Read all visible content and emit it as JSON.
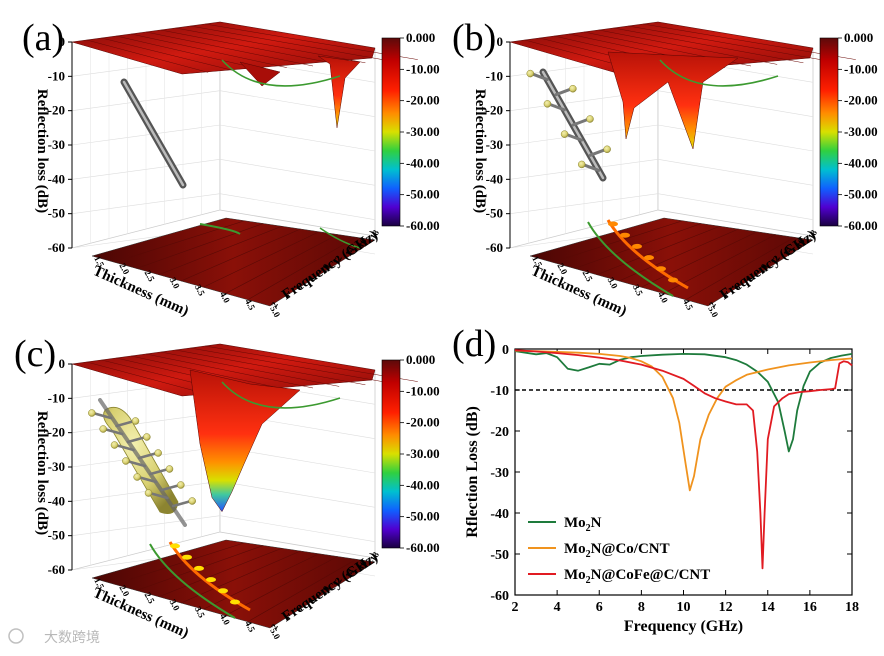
{
  "figure": {
    "panel_labels": [
      "(a)",
      "(b)",
      "(c)",
      "(d)"
    ],
    "watermark": "大数跨境"
  },
  "chart_data": [
    {
      "type": "surface3d",
      "panel": "(a)",
      "zlabel": "Reflection loss (dB)",
      "xlabel": "Thickness (mm)",
      "ylabel": "Frequency (GHz)",
      "z_ticks": [
        "0",
        "-10",
        "-20",
        "-30",
        "-40",
        "-50",
        "-60"
      ],
      "thickness_ticks": [
        "1.5",
        "2.0",
        "2.5",
        "3.0",
        "3.5",
        "4.0",
        "4.5",
        "5.0"
      ],
      "frequency_ticks": [
        "2",
        "4",
        "6",
        "8",
        "10",
        "12",
        "14",
        "16",
        "18"
      ],
      "colorbar": [
        "0.000",
        "-10.00",
        "-20.00",
        "-30.00",
        "-40.00",
        "-50.00",
        "-60.00"
      ],
      "min_rl": -25
    },
    {
      "type": "surface3d",
      "panel": "(b)",
      "zlabel": "Reflection loss (dB)",
      "xlabel": "Thickness (mm)",
      "ylabel": "Frequency (GHz)",
      "z_ticks": [
        "0",
        "-10",
        "-20",
        "-30",
        "-40",
        "-50",
        "-60"
      ],
      "thickness_ticks": [
        "1.5",
        "2.0",
        "2.5",
        "3.0",
        "3.5",
        "4.0",
        "4.5",
        "5.0"
      ],
      "frequency_ticks": [
        "2",
        "4",
        "6",
        "8",
        "10",
        "12",
        "14",
        "16",
        "18"
      ],
      "colorbar": [
        "0.000",
        "-10.00",
        "-20.00",
        "-30.00",
        "-40.00",
        "-50.00",
        "-60.00"
      ],
      "min_rl": -30
    },
    {
      "type": "surface3d",
      "panel": "(c)",
      "zlabel": "Reflection loss (dB)",
      "xlabel": "Thickness (mm)",
      "ylabel": "Frequency (GHz)",
      "z_ticks": [
        "0",
        "-10",
        "-20",
        "-30",
        "-40",
        "-50",
        "-60"
      ],
      "thickness_ticks": [
        "1.5",
        "2.0",
        "2.5",
        "3.0",
        "3.5",
        "4.0",
        "4.5",
        "5.0"
      ],
      "frequency_ticks": [
        "2",
        "4",
        "6",
        "8",
        "10",
        "12",
        "14",
        "16",
        "18"
      ],
      "colorbar": [
        "0.000",
        "-10.00",
        "-20.00",
        "-30.00",
        "-40.00",
        "-50.00",
        "-60.00"
      ],
      "min_rl": -43
    },
    {
      "type": "line",
      "panel": "(d)",
      "xlabel": "Frequency (GHz)",
      "ylabel": "Rflection Loss (dB)",
      "xlim": [
        2,
        18
      ],
      "ylim": [
        -60,
        0
      ],
      "x_ticks": [
        2,
        4,
        6,
        8,
        10,
        12,
        14,
        16,
        18
      ],
      "y_ticks": [
        0,
        -10,
        -20,
        -30,
        -40,
        -50,
        -60
      ],
      "reference_line": -10,
      "series": [
        {
          "name": "Mo2N",
          "label_main": "Mo",
          "label_sub": "2",
          "label_rest": "N",
          "color": "#1e7b3c",
          "x": [
            2,
            2.5,
            3,
            3.5,
            4,
            4.5,
            5,
            5.5,
            6,
            6.5,
            7,
            7.5,
            8,
            9,
            10,
            11,
            12,
            12.5,
            13,
            13.5,
            14,
            14.5,
            14.8,
            15.0,
            15.2,
            15.4,
            15.7,
            16,
            16.5,
            17,
            17.5,
            18
          ],
          "y": [
            -0.5,
            -0.9,
            -1.3,
            -1.0,
            -2.0,
            -4.8,
            -5.3,
            -4.5,
            -3.6,
            -3.8,
            -2.6,
            -2.0,
            -1.7,
            -1.4,
            -1.2,
            -1.3,
            -2.0,
            -2.7,
            -3.8,
            -5.5,
            -8.0,
            -13.0,
            -20.0,
            -25.0,
            -22.0,
            -15.0,
            -9.0,
            -5.5,
            -3.3,
            -2.2,
            -1.6,
            -1.2
          ]
        },
        {
          "name": "Mo2N@Co/CNT",
          "label_main": "Mo",
          "label_sub": "2",
          "label_rest": "N@Co/CNT",
          "color": "#f0931e",
          "x": [
            2,
            3,
            4,
            5,
            6,
            7,
            7.5,
            8,
            8.5,
            9,
            9.5,
            9.8,
            10.1,
            10.3,
            10.5,
            10.8,
            11.2,
            11.6,
            12,
            12.5,
            13,
            14,
            15,
            16,
            17,
            18
          ],
          "y": [
            -0.4,
            -0.5,
            -0.7,
            -0.9,
            -1.2,
            -1.7,
            -2.2,
            -3.0,
            -4.3,
            -6.8,
            -12.0,
            -18.0,
            -28.0,
            -34.5,
            -31.0,
            -22.0,
            -16.0,
            -12.0,
            -9.2,
            -7.6,
            -6.3,
            -5.0,
            -4.0,
            -3.3,
            -2.7,
            -2.3
          ]
        },
        {
          "name": "Mo2N@CoFe@C/CNT",
          "label_main": "Mo",
          "label_sub": "2",
          "label_rest": "N@CoFe@C/CNT",
          "color": "#e11b22",
          "x": [
            2,
            3,
            4,
            5,
            6,
            7,
            8,
            9,
            10,
            10.5,
            11,
            11.5,
            12,
            12.5,
            13,
            13.3,
            13.5,
            13.65,
            13.75,
            13.85,
            14.0,
            14.3,
            14.7,
            15,
            15.5,
            16,
            16.5,
            17,
            17.2,
            17.4,
            17.6,
            17.8,
            18
          ],
          "y": [
            -0.3,
            -0.6,
            -1.0,
            -1.5,
            -2.1,
            -2.8,
            -3.8,
            -5.3,
            -7.3,
            -9.0,
            -10.8,
            -12.0,
            -12.8,
            -13.5,
            -13.5,
            -15.0,
            -25.0,
            -40.0,
            -53.5,
            -40.0,
            -22.0,
            -14.0,
            -12.0,
            -11.0,
            -10.5,
            -10.3,
            -10.0,
            -9.8,
            -9.6,
            -3.5,
            -3.0,
            -3.2,
            -4.0
          ]
        }
      ]
    }
  ]
}
